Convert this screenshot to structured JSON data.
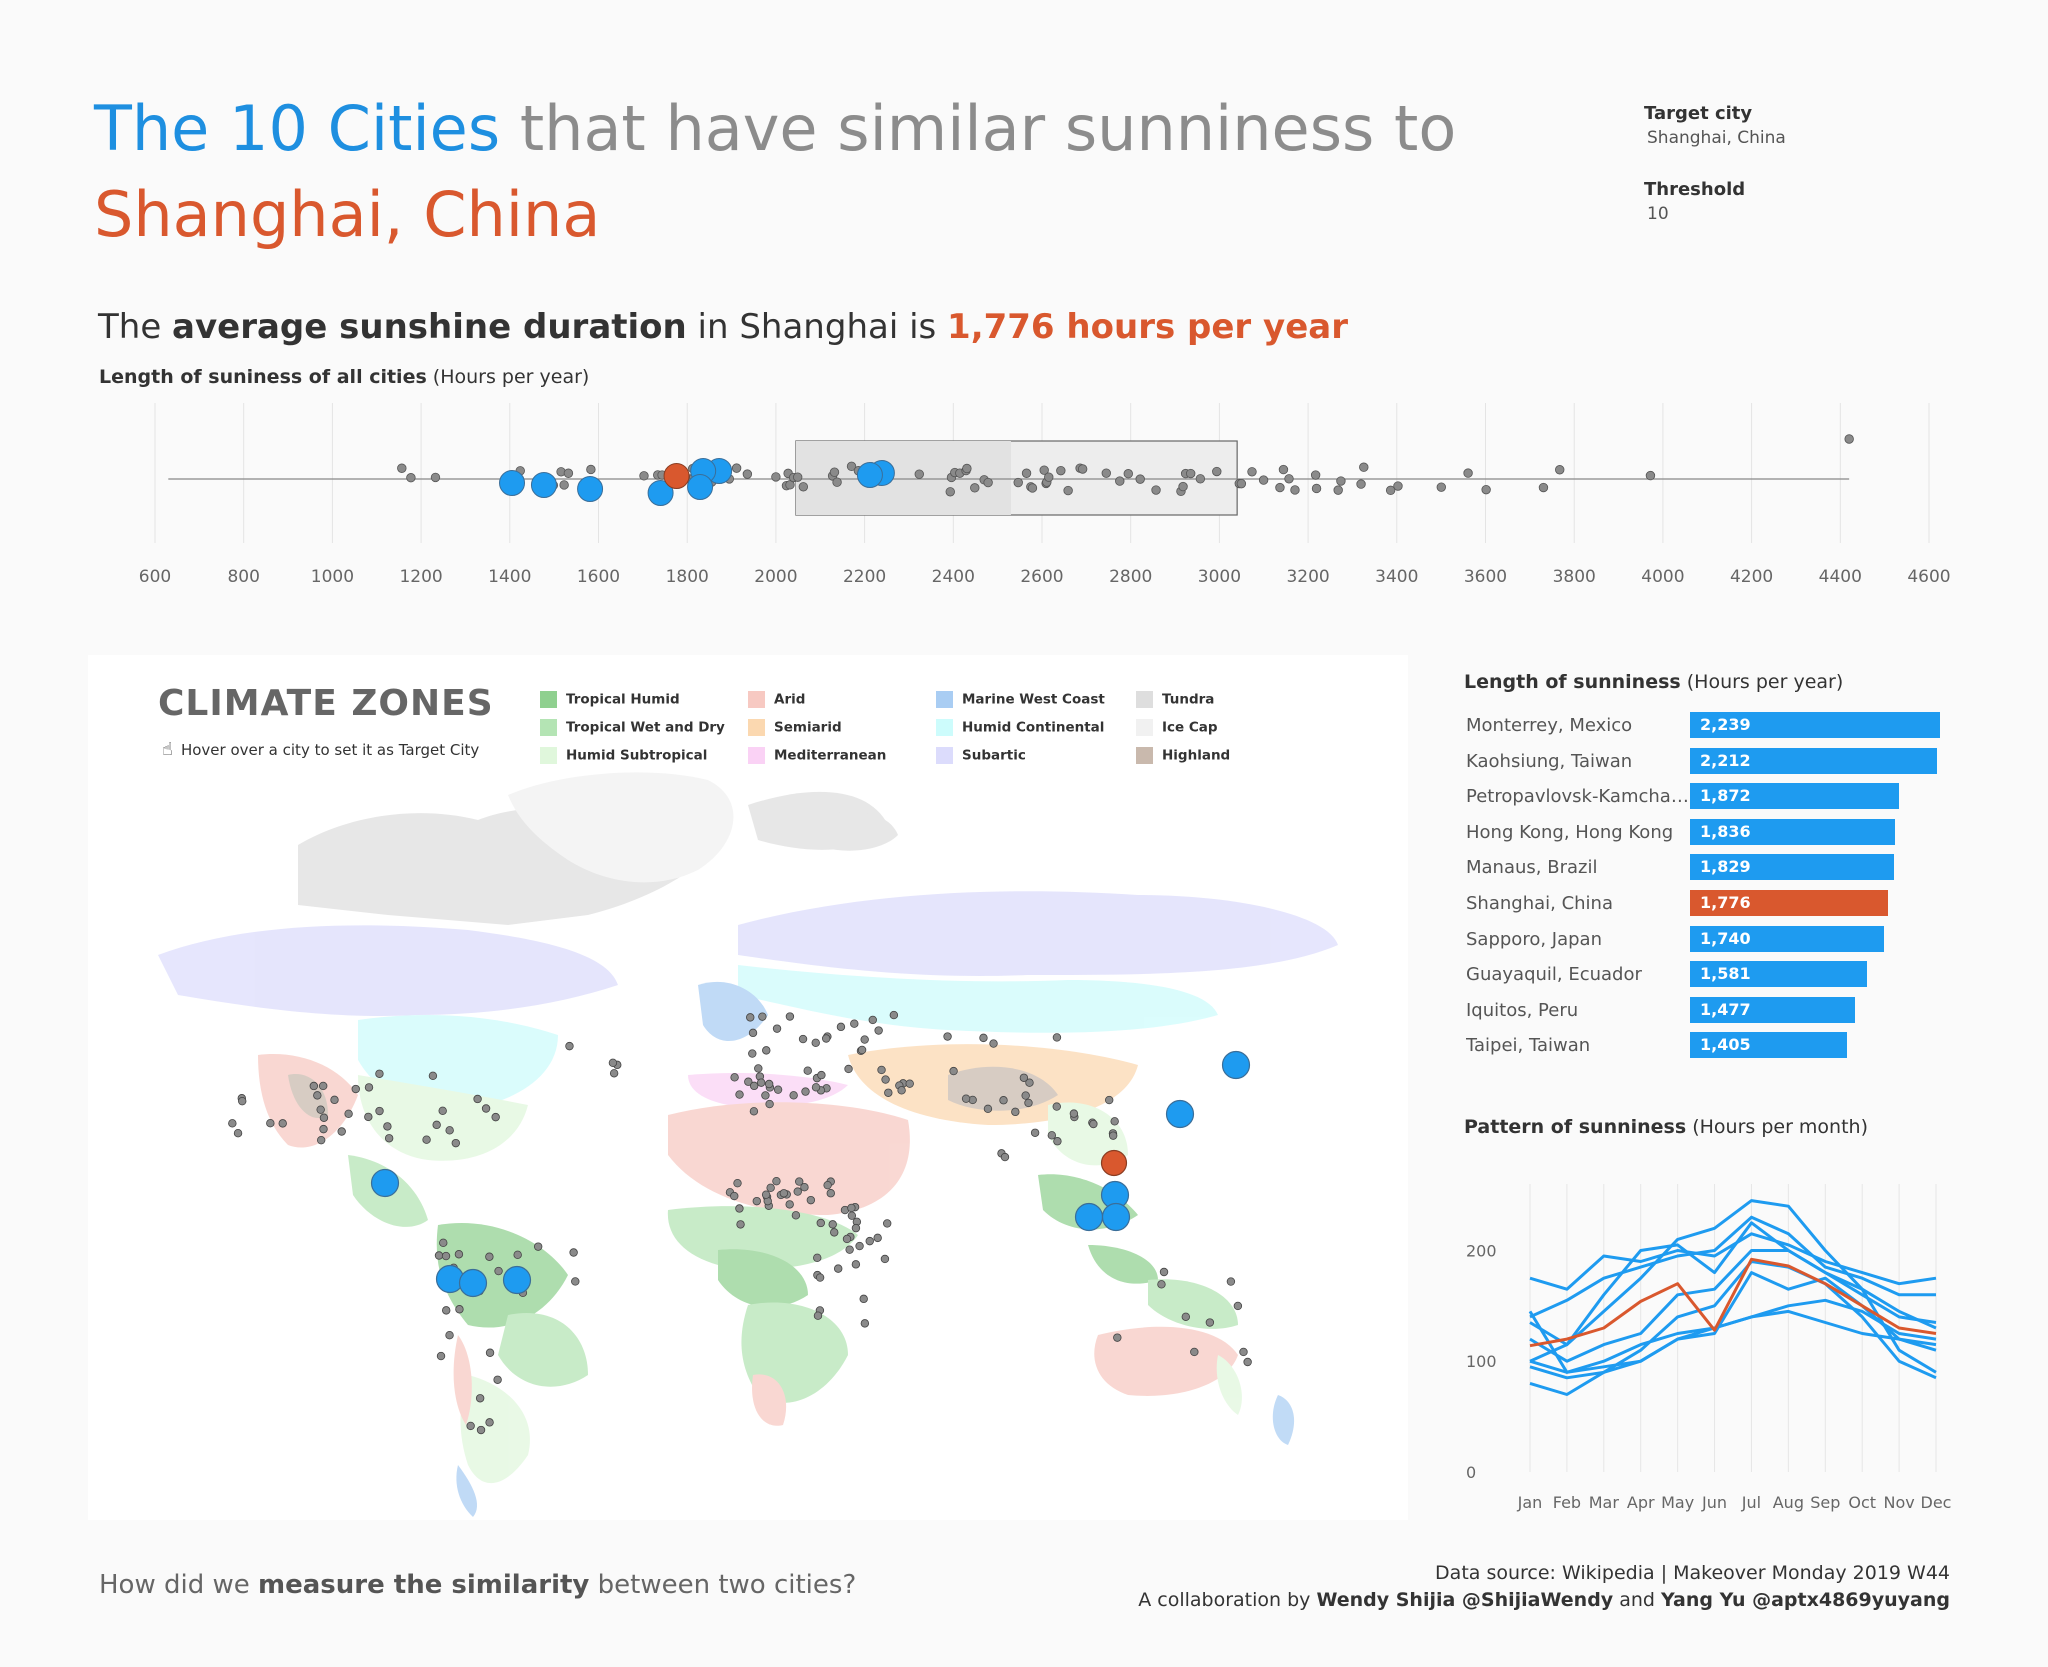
{
  "header": {
    "title_part1": "The 10 Cities",
    "title_part2": " that have similar sunniness to",
    "title_city": "Shanghai, China",
    "headline_pre": "The ",
    "headline_bold": "average sunshine duration",
    "headline_mid": " in Shanghai is ",
    "headline_value": "1,776 hours per year"
  },
  "params": {
    "target_label": "Target city",
    "target_value": "Shanghai, China",
    "threshold_label": "Threshold",
    "threshold_value": "10"
  },
  "colors": {
    "similar": "#1e9bf0",
    "target": "#d9582e",
    "other": "#8a8a8a",
    "title_blue": "#1e8fe0",
    "title_gray": "#8c8c8c"
  },
  "strip": {
    "label_bold": "Length of suniness of all cities",
    "label_unit": " (Hours per year)"
  },
  "map": {
    "title": "CLIMATE ZONES",
    "hint": "Hover over a city to set it as Target City",
    "hint_icon": "pointer-hand-icon",
    "legend": [
      {
        "label": "Tropical Humid",
        "color": "#8fd08f"
      },
      {
        "label": "Tropical Wet and Dry",
        "color": "#b4e4b4"
      },
      {
        "label": "Humid Subtropical",
        "color": "#e0f7dc"
      },
      {
        "label": "Arid",
        "color": "#f7c9c2"
      },
      {
        "label": "Semiarid",
        "color": "#fbd8b0"
      },
      {
        "label": "Mediterranean",
        "color": "#fad2f5"
      },
      {
        "label": "Marine West Coast",
        "color": "#a9cdf3"
      },
      {
        "label": "Humid Continental",
        "color": "#cdfcfc"
      },
      {
        "label": "Subartic",
        "color": "#dcdcfc"
      },
      {
        "label": "Tundra",
        "color": "#dedede"
      },
      {
        "label": "Ice Cap",
        "color": "#f1f1f1"
      },
      {
        "label": "Highland",
        "color": "#c9b9ad"
      }
    ]
  },
  "bars": {
    "title_bold": "Length of sunniness",
    "title_unit": " (Hours per year)"
  },
  "lines": {
    "title_bold": "Pattern of sunniness",
    "title_unit": " (Hours per month)"
  },
  "footer": {
    "question_pre": "How did we ",
    "question_bold": "measure the similarity",
    "question_post": " between two cities?",
    "source": "Data source: Wikipedia  |   Makeover Monday 2019 W44",
    "collab_pre": "A collaboration by ",
    "author1": "Wendy Shijia @ShijiaWendy",
    "collab_and": " and ",
    "author2": "Yang Yu @aptx4869yuyang"
  },
  "chart_data": [
    {
      "type": "scatter",
      "name": "strip",
      "xlim": [
        600,
        4600
      ],
      "xticks": [
        600,
        800,
        1000,
        1200,
        1400,
        1600,
        1800,
        2000,
        2200,
        2400,
        2600,
        2800,
        3000,
        3200,
        3400,
        3600,
        3800,
        4000,
        4200,
        4400,
        4600
      ],
      "range_band": [
        2045,
        3040
      ],
      "range_band_inner": [
        2045,
        2530
      ],
      "range_line": [
        630,
        4420
      ],
      "highlight": [
        {
          "city": "Monterrey, Mexico",
          "value": 2239
        },
        {
          "city": "Kaohsiung, Taiwan",
          "value": 2212
        },
        {
          "city": "Petropavlovsk-Kamchatsky",
          "value": 1872
        },
        {
          "city": "Hong Kong, Hong Kong",
          "value": 1836
        },
        {
          "city": "Manaus, Brazil",
          "value": 1829
        },
        {
          "city": "Sapporo, Japan",
          "value": 1740
        },
        {
          "city": "Guayaquil, Ecuador",
          "value": 1581
        },
        {
          "city": "Iquitos, Peru",
          "value": 1477
        },
        {
          "city": "Taipei, Taiwan",
          "value": 1405
        }
      ],
      "target": {
        "city": "Shanghai, China",
        "value": 1776
      }
    },
    {
      "type": "bar",
      "name": "bars",
      "categories": [
        "Monterrey, Mexico",
        "Kaohsiung, Taiwan",
        "Petropavlovsk-Kamchatsky",
        "Hong Kong, Hong Kong",
        "Manaus, Brazil",
        "Shanghai, China",
        "Sapporo, Japan",
        "Guayaquil, Ecuador",
        "Iquitos, Peru",
        "Taipei, Taiwan"
      ],
      "values": [
        2239,
        2212,
        1872,
        1836,
        1829,
        1776,
        1740,
        1581,
        1477,
        1405
      ],
      "labels": [
        "2,239",
        "2,212",
        "1,872",
        "1,836",
        "1,829",
        "1,776",
        "1,740",
        "1,581",
        "1,477",
        "1,405"
      ],
      "highlight_index": 5
    },
    {
      "type": "line",
      "name": "monthly",
      "categories": [
        "Jan",
        "Feb",
        "Mar",
        "Apr",
        "May",
        "Jun",
        "Jul",
        "Aug",
        "Sep",
        "Oct",
        "Nov",
        "Dec"
      ],
      "ylim": [
        0,
        260
      ],
      "yticks": [
        0,
        100,
        200
      ],
      "series": [
        {
          "values": [
            114,
            120,
            130,
            154,
            170,
            128,
            192,
            186,
            170,
            150,
            130,
            125
          ],
          "target": true
        },
        {
          "values": [
            175,
            165,
            195,
            190,
            200,
            195,
            215,
            205,
            190,
            180,
            170,
            175
          ]
        },
        {
          "values": [
            140,
            155,
            175,
            185,
            195,
            200,
            230,
            215,
            185,
            175,
            160,
            160
          ]
        },
        {
          "values": [
            100,
            115,
            145,
            175,
            210,
            220,
            245,
            240,
            200,
            165,
            110,
            90
          ]
        },
        {
          "values": [
            135,
            115,
            160,
            200,
            205,
            180,
            225,
            200,
            180,
            160,
            140,
            135
          ]
        },
        {
          "values": [
            120,
            100,
            115,
            125,
            160,
            165,
            200,
            200,
            180,
            165,
            145,
            130
          ]
        },
        {
          "values": [
            100,
            90,
            95,
            100,
            120,
            125,
            180,
            165,
            175,
            150,
            120,
            110
          ]
        },
        {
          "values": [
            95,
            85,
            90,
            110,
            140,
            150,
            190,
            185,
            170,
            140,
            100,
            85
          ]
        },
        {
          "values": [
            80,
            70,
            90,
            100,
            120,
            130,
            140,
            150,
            155,
            145,
            125,
            120
          ]
        },
        {
          "values": [
            145,
            90,
            100,
            115,
            125,
            130,
            140,
            145,
            135,
            125,
            120,
            115
          ]
        }
      ]
    }
  ]
}
